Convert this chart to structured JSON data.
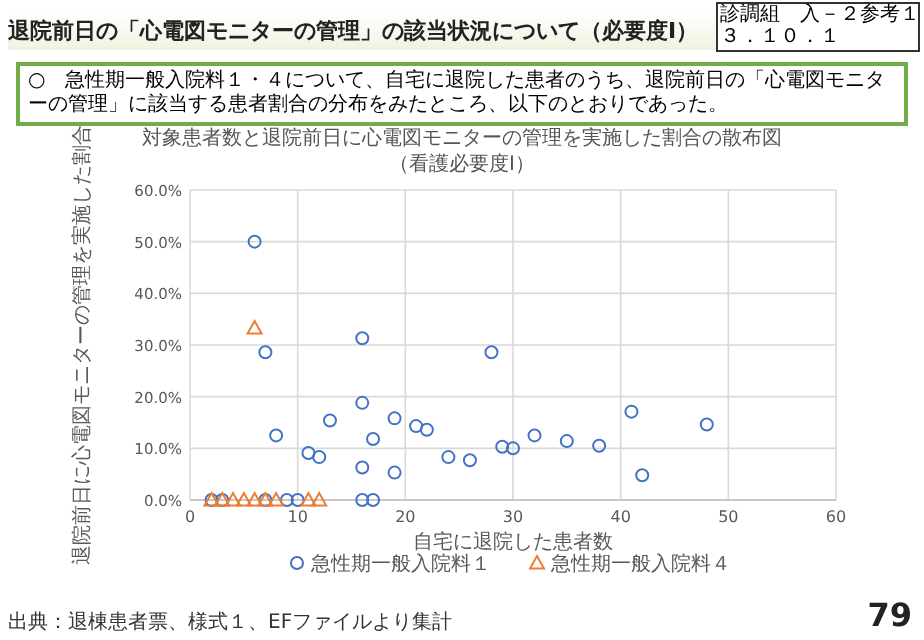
{
  "chart_data": {
    "type": "scatter",
    "title": "退院前日の「心電図モニターの管理」の該当状況について（必要度Ⅰ）",
    "subtitle": "対象患者数と退院前日に心電図モニターの管理を実施した割合の散布図",
    "annotations": [
      "診調組　入－２参考１",
      "３．１０．１",
      "○　急性期一般入院料１・４について、自宅に退院した患者のうち、退院前日の「心電図モニターの管理」に該当する患者割合の分布をみたところ、以下のとおりであった。",
      "（看護必要度Ⅰ）",
      "出典：退棟患者票、様式１、EFファイルより集計",
      "79"
    ],
    "xlabel": "自宅に退院した患者数",
    "ylabel": "退院前日に心電図モニターの管理を実施した割合",
    "xlim": [
      0,
      60
    ],
    "xticks": [
      0,
      10,
      20,
      30,
      40,
      50,
      60
    ],
    "ylim": [
      0,
      60
    ],
    "yticks": [
      {
        "value": 0,
        "label": "0.0%"
      },
      {
        "value": 10,
        "label": "10.0%"
      },
      {
        "value": 20,
        "label": "20.0%"
      },
      {
        "value": 30,
        "label": "30.0%"
      },
      {
        "value": 40,
        "label": "40.0%"
      },
      {
        "value": 50,
        "label": "50.0%"
      },
      {
        "value": 60,
        "label": "60.0%"
      }
    ],
    "grid": true,
    "legend": "bottom",
    "series": [
      {
        "name": "急性期一般入院料１",
        "color": "#4472c4",
        "marker": "circle",
        "x": [
          6,
          7,
          8,
          11,
          12,
          13,
          16,
          16,
          16,
          17,
          19,
          19,
          21,
          22,
          24,
          26,
          28,
          29,
          30,
          32,
          35,
          38,
          41,
          42,
          48,
          2,
          3,
          7,
          9,
          10,
          16,
          17
        ],
        "values": [
          50,
          28.6,
          12.5,
          9.1,
          8.3,
          15.4,
          31.3,
          18.8,
          6.3,
          11.8,
          15.8,
          5.3,
          14.3,
          13.6,
          8.3,
          7.7,
          28.6,
          10.3,
          10,
          12.5,
          11.4,
          10.5,
          17.1,
          4.8,
          14.6,
          0,
          0,
          0,
          0,
          0,
          0,
          0
        ]
      },
      {
        "name": "急性期一般入院料４",
        "color": "#ed7d31",
        "marker": "triangle",
        "x": [
          6,
          2,
          3,
          4,
          5,
          6,
          7,
          8,
          11,
          12
        ],
        "values": [
          33.3,
          0,
          0,
          0,
          0,
          0,
          0,
          0,
          0,
          0
        ]
      }
    ]
  }
}
